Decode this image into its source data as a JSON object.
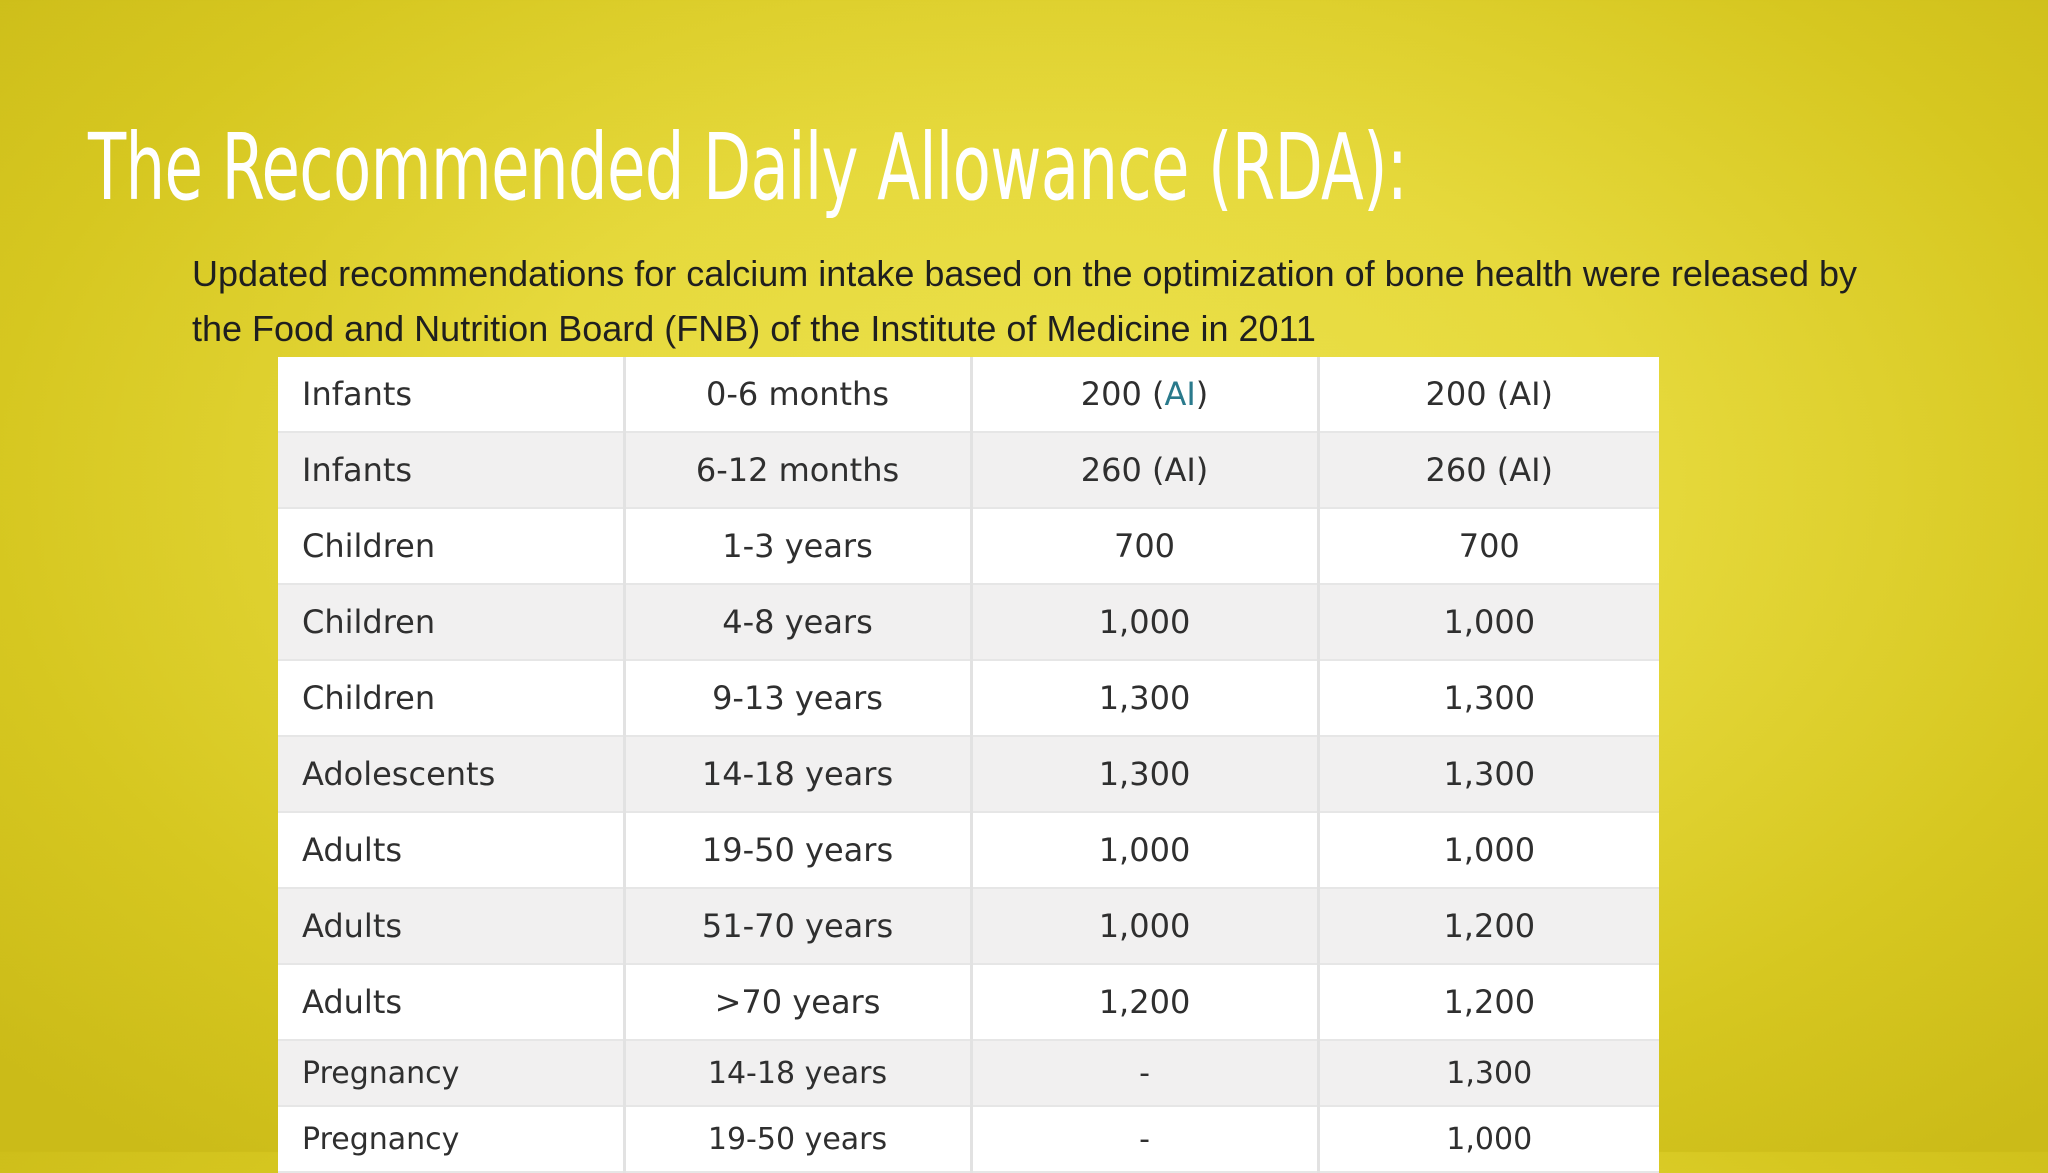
{
  "title": "The Recommended Daily Allowance (RDA):",
  "subtitle": "Updated recommendations for calcium intake based on the optimization of bone health were released by the Food and Nutrition Board (FNB) of the Institute of Medicine in 2011",
  "table": {
    "rows": [
      {
        "group": "Infants",
        "age": "0-6 months",
        "val1_prefix": "200 (",
        "val1_link": "AI",
        "val1_suffix": ")",
        "val2": "200 (AI)"
      },
      {
        "group": "Infants",
        "age": "6-12 months",
        "val1": "260 (AI)",
        "val2": "260 (AI)"
      },
      {
        "group": "Children",
        "age": "1-3 years",
        "val1": "700",
        "val2": "700"
      },
      {
        "group": "Children",
        "age": "4-8 years",
        "val1": "1,000",
        "val2": "1,000"
      },
      {
        "group": "Children",
        "age": "9-13 years",
        "val1": "1,300",
        "val2": "1,300"
      },
      {
        "group": "Adolescents",
        "age": "14-18 years",
        "val1": "1,300",
        "val2": "1,300"
      },
      {
        "group": "Adults",
        "age": "19-50 years",
        "val1": "1,000",
        "val2": "1,000"
      },
      {
        "group": "Adults",
        "age": "51-70 years",
        "val1": "1,000",
        "val2": "1,200"
      },
      {
        "group": "Adults",
        "age": ">70 years",
        "val1": "1,200",
        "val2": "1,200"
      },
      {
        "group": "Pregnancy",
        "age": "14-18 years",
        "val1": "-",
        "val2": "1,300"
      },
      {
        "group": "Pregnancy",
        "age": "19-50 years",
        "val1": "-",
        "val2": "1,000"
      }
    ]
  }
}
